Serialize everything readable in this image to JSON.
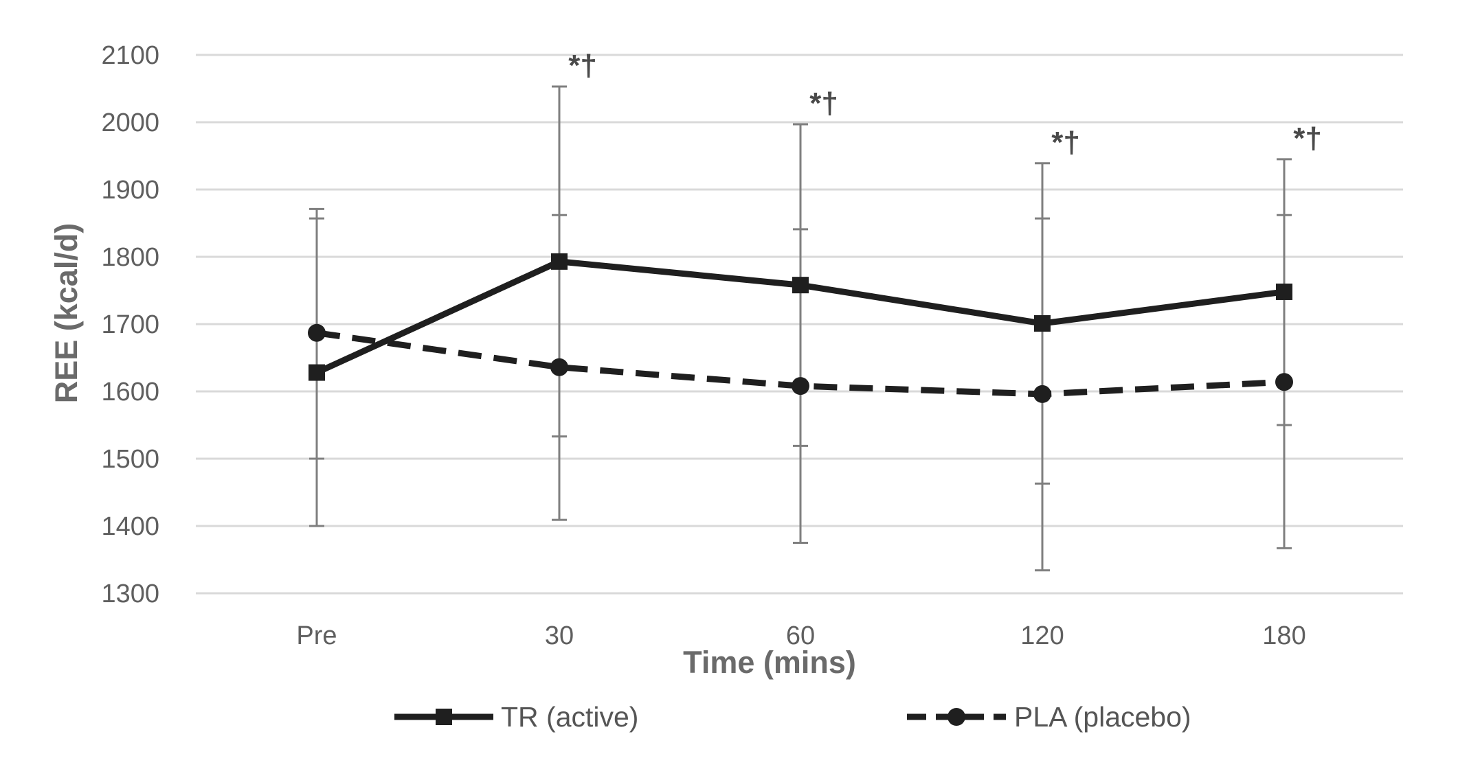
{
  "chart_data": {
    "type": "line",
    "xlabel": "Time (mins)",
    "ylabel": "REE (kcal/d)",
    "categories": [
      "Pre",
      "30",
      "60",
      "120",
      "180"
    ],
    "ylim": [
      1300,
      2100
    ],
    "yticks": [
      1300,
      1400,
      1500,
      1600,
      1700,
      1800,
      1900,
      2000,
      2100
    ],
    "grid": true,
    "legend_position": "bottom",
    "series": [
      {
        "name": "TR (active)",
        "line_style": "solid",
        "marker": "square",
        "color": "#1f1f1f",
        "values": [
          1628,
          1793,
          1758,
          1701,
          1748
        ],
        "error_upper": [
          1871,
          2053,
          1997,
          1939,
          1945
        ],
        "error_lower": [
          1400,
          1409,
          1375,
          1334,
          1367
        ]
      },
      {
        "name": "PLA (placebo)",
        "line_style": "dashed",
        "marker": "circle",
        "color": "#1f1f1f",
        "values": [
          1687,
          1636,
          1608,
          1596,
          1614
        ],
        "error_upper": [
          1857,
          1862,
          1841,
          1857,
          1862
        ],
        "error_lower": [
          1500,
          1533,
          1519,
          1463,
          1550
        ]
      }
    ],
    "annotations": [
      {
        "category": "30",
        "text": "*†",
        "y": 2053
      },
      {
        "category": "60",
        "text": "*†",
        "y": 1997
      },
      {
        "category": "120",
        "text": "*†",
        "y": 1939
      },
      {
        "category": "180",
        "text": "*†",
        "y": 1945
      }
    ],
    "colors": {
      "grid": "#d9d9d9",
      "error_bar": "#7f7f7f",
      "tick_text": "#5f5f5f",
      "axis_title": "#6a6a6a"
    }
  }
}
